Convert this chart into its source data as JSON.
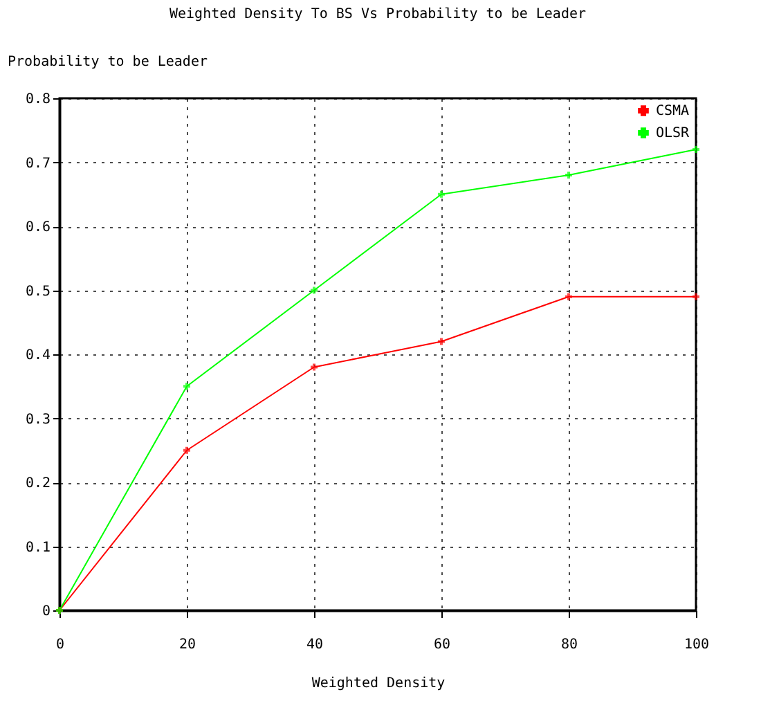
{
  "chart_data": {
    "type": "line",
    "title": "Weighted Density To BS Vs Probability to be Leader",
    "xlabel": "Weighted Density",
    "ylabel": "Probability to be Leader",
    "x": [
      0,
      20,
      40,
      60,
      80,
      100
    ],
    "series": [
      {
        "name": "CSMA",
        "color": "#ff0000",
        "values": [
          0,
          0.25,
          0.38,
          0.42,
          0.49,
          0.49
        ]
      },
      {
        "name": "OLSR",
        "color": "#00ff00",
        "values": [
          0,
          0.35,
          0.5,
          0.65,
          0.68,
          0.72
        ]
      }
    ],
    "xlim": [
      0,
      100
    ],
    "xticks": [
      0,
      20,
      40,
      60,
      80,
      100
    ],
    "ylim": [
      0,
      0.8
    ],
    "yticks": [
      0,
      0.1,
      0.2,
      0.3,
      0.4,
      0.5,
      0.6,
      0.7,
      0.8
    ],
    "grid": true,
    "legend": "top right",
    "marker": "cross",
    "line_style": "solid"
  }
}
